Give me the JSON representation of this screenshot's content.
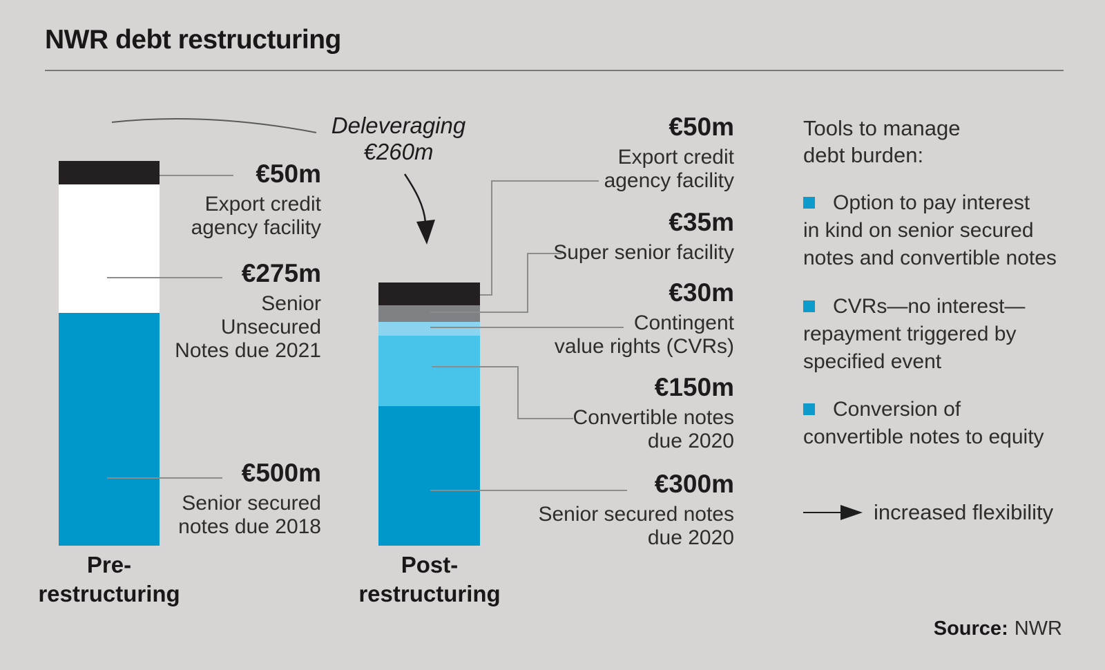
{
  "title": "NWR debt restructuring",
  "source": {
    "prefix": "Source:",
    "value": "NWR"
  },
  "palette": {
    "background": "#d6d5d3",
    "black_segment": "#241f21",
    "gray_segment": "#808185",
    "light_blue_segment": "#8bd4ef",
    "mid_blue_segment": "#48c3e9",
    "dark_blue_segment": "#0098cb",
    "white_segment": "#ffffff",
    "bullet_blue": "#0c9bca",
    "connector_gray": "#8c8c8a"
  },
  "tools": {
    "heading_lines": [
      "Tools to manage",
      "debt burden:"
    ],
    "items": [
      {
        "text": "Option to pay interest in kind on senior secured notes and convertible notes",
        "lines": [
          "Option to pay interest",
          "in kind on senior secured",
          "notes and convertible notes"
        ]
      },
      {
        "text": "CVRs—no interest—repayment triggered by specified event",
        "lines": [
          "CVRs—no interest—",
          "repayment triggered by",
          "specified event"
        ]
      },
      {
        "text": "Conversion of convertible notes to equity",
        "lines": [
          "Conversion of",
          "convertible notes to equity"
        ]
      }
    ],
    "arrow_note": "increased flexibility"
  },
  "chart_data": {
    "type": "bar",
    "stacked": true,
    "unit": "€m",
    "categories": [
      "Pre-restructuring",
      "Post-restructuring"
    ],
    "categories_lines": [
      [
        "Pre-",
        "restructuring"
      ],
      [
        "Post-",
        "restructuring"
      ]
    ],
    "deleveraging": {
      "label": "Deleveraging",
      "amount": "€260m",
      "value": 260
    },
    "bars": [
      {
        "category": "Pre-restructuring",
        "total": 825,
        "segments": [
          {
            "label": "Export credit agency facility",
            "value": 50,
            "display": "€50m",
            "color": "#241f21",
            "lines": [
              "Export credit",
              "agency facility"
            ]
          },
          {
            "label": "Senior Unsecured Notes due 2021",
            "value": 275,
            "display": "€275m",
            "color": "#ffffff",
            "lines": [
              "Senior",
              "Unsecured",
              "Notes due 2021"
            ]
          },
          {
            "label": "Senior secured notes due 2018",
            "value": 500,
            "display": "€500m",
            "color": "#0098cb",
            "lines": [
              "Senior secured",
              "notes due 2018"
            ]
          }
        ]
      },
      {
        "category": "Post-restructuring",
        "total": 565,
        "segments": [
          {
            "label": "Export credit agency facility",
            "value": 50,
            "display": "€50m",
            "color": "#241f21",
            "lines": [
              "Export credit",
              "agency facility"
            ]
          },
          {
            "label": "Super senior facility",
            "value": 35,
            "display": "€35m",
            "color": "#808185",
            "lines": [
              "Super senior facility"
            ]
          },
          {
            "label": "Contingent value rights (CVRs)",
            "value": 30,
            "display": "€30m",
            "color": "#8bd4ef",
            "lines": [
              "Contingent",
              "value rights (CVRs)"
            ]
          },
          {
            "label": "Convertible notes due 2020",
            "value": 150,
            "display": "€150m",
            "color": "#48c3e9",
            "lines": [
              "Convertible notes",
              "due 2020"
            ]
          },
          {
            "label": "Senior secured notes due 2020",
            "value": 300,
            "display": "€300m",
            "color": "#0098cb",
            "lines": [
              "Senior secured notes",
              "due 2020"
            ]
          }
        ]
      }
    ]
  }
}
